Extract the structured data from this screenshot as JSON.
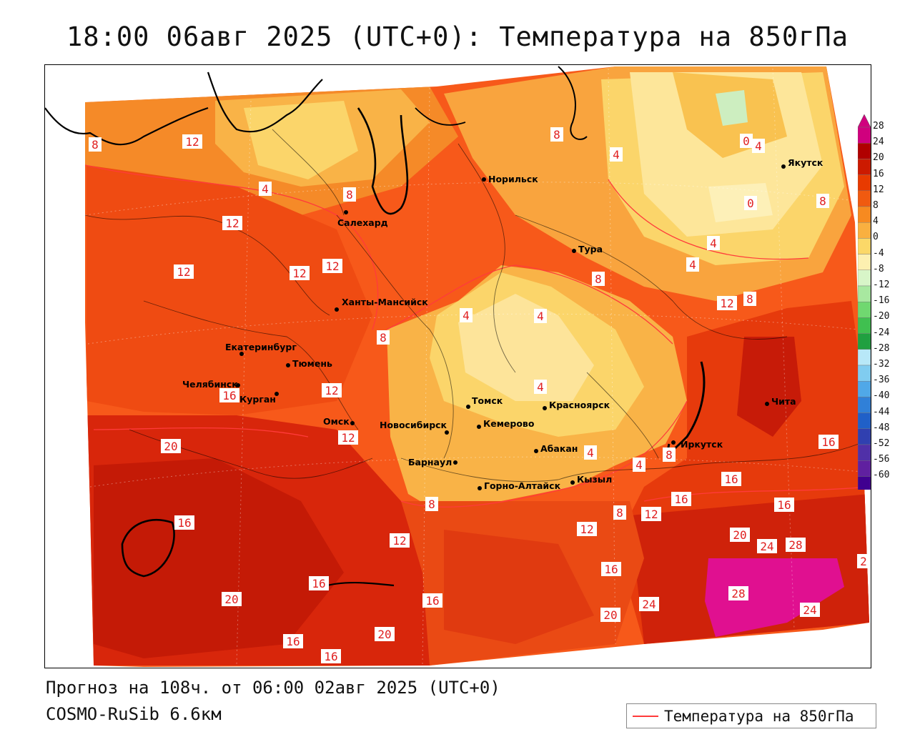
{
  "title": "18:00 06авг 2025 (UTC+0): Температура на 850гПа",
  "footer": {
    "forecast": "Прогноз на 108ч. от 06:00 02авг 2025 (UTC+0)",
    "model": "COSMO-RuSib 6.6км"
  },
  "legend": {
    "label": "Температура на 850гПа",
    "line_color": "#ff3b3b"
  },
  "colorbar": {
    "ticks": [
      "28",
      "24",
      "20",
      "16",
      "12",
      "8",
      "4",
      "0",
      "-4",
      "-8",
      "-12",
      "-16",
      "-20",
      "-24",
      "-28",
      "-32",
      "-36",
      "-40",
      "-44",
      "-48",
      "-52",
      "-56",
      "-60"
    ],
    "colors": [
      "#d0007e",
      "#b00000",
      "#cc1a00",
      "#e83a00",
      "#f05a10",
      "#f78a20",
      "#f9b040",
      "#fbd868",
      "#fdf0b0",
      "#d8f5c8",
      "#a8e8a0",
      "#70d870",
      "#40c050",
      "#20a040",
      "#b8e8f8",
      "#80ccf0",
      "#50a8e8",
      "#3080d8",
      "#2060c8",
      "#3040b0",
      "#5030a8",
      "#6020a0",
      "#400090"
    ]
  },
  "cities": [
    {
      "name": "Норильск"
    },
    {
      "name": "Якутск"
    },
    {
      "name": "Салехард"
    },
    {
      "name": "Тура"
    },
    {
      "name": "Ханты-Мансийск"
    },
    {
      "name": "Екатеринбург"
    },
    {
      "name": "Тюмень"
    },
    {
      "name": "Челябинск"
    },
    {
      "name": "Курган"
    },
    {
      "name": "Томск"
    },
    {
      "name": "Красноярск"
    },
    {
      "name": "Омск"
    },
    {
      "name": "Новосибирск"
    },
    {
      "name": "Кемерово"
    },
    {
      "name": "Абакан"
    },
    {
      "name": "Иркутск"
    },
    {
      "name": "Барнаул"
    },
    {
      "name": "Чита"
    },
    {
      "name": "Горно-Алтайск"
    },
    {
      "name": "Кызыл"
    }
  ],
  "isotherm_labels": [
    "8",
    "12",
    "4",
    "8",
    "12",
    "12",
    "12",
    "12",
    "8",
    "4",
    "8",
    "4",
    "0",
    "4",
    "8",
    "4",
    "0",
    "4",
    "12",
    "8",
    "12",
    "4",
    "4",
    "8",
    "4",
    "16",
    "12",
    "16",
    "8",
    "4",
    "20",
    "8",
    "16",
    "16",
    "16",
    "8",
    "12",
    "12",
    "16",
    "12",
    "20",
    "24",
    "28",
    "16",
    "16",
    "20",
    "24",
    "16",
    "20",
    "28",
    "24",
    "20",
    "16",
    "16",
    "2"
  ]
}
